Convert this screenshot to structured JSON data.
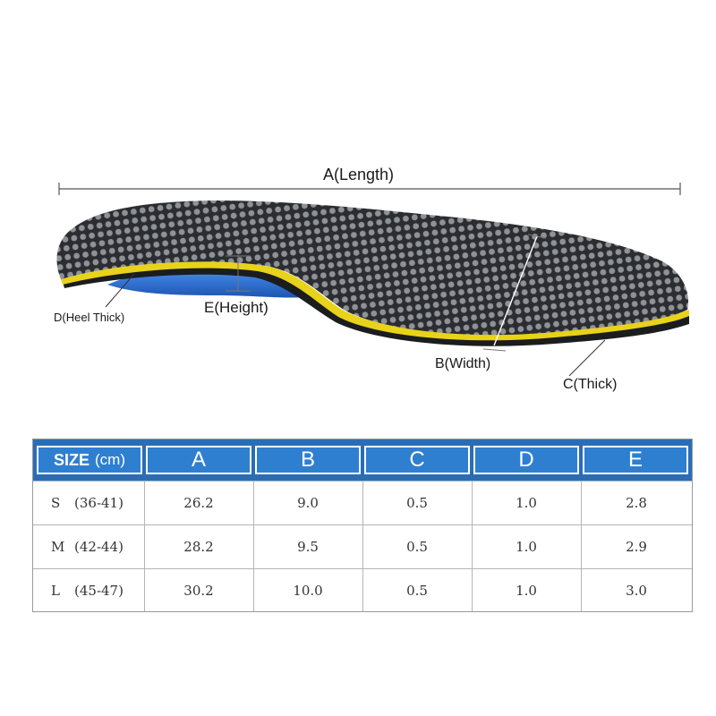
{
  "diagram": {
    "length_label": "A(Length)",
    "heel_thick_label": "D(Heel Thick)",
    "height_label": "E(Height)",
    "width_label": "B(Width)",
    "thick_label": "C(Thick)"
  },
  "colors": {
    "top_layer": "#2b2d30",
    "dot": "#8e9296",
    "edge": "#e8d21a",
    "arch_support": "#2f74d6",
    "header_bg": "#2a6db5",
    "header_cell": "#2f7fd0"
  },
  "size_table": {
    "size_header_bold": "SIZE",
    "size_header_unit": "(cm)",
    "columns": [
      "A",
      "B",
      "C",
      "D",
      "E"
    ],
    "rows": [
      {
        "code": "S",
        "range": "(36-41)",
        "values": [
          "26.2",
          "9.0",
          "0.5",
          "1.0",
          "2.8"
        ]
      },
      {
        "code": "M",
        "range": "(42-44)",
        "values": [
          "28.2",
          "9.5",
          "0.5",
          "1.0",
          "2.9"
        ]
      },
      {
        "code": "L",
        "range": "(45-47)",
        "values": [
          "30.2",
          "10.0",
          "0.5",
          "1.0",
          "3.0"
        ]
      }
    ]
  }
}
